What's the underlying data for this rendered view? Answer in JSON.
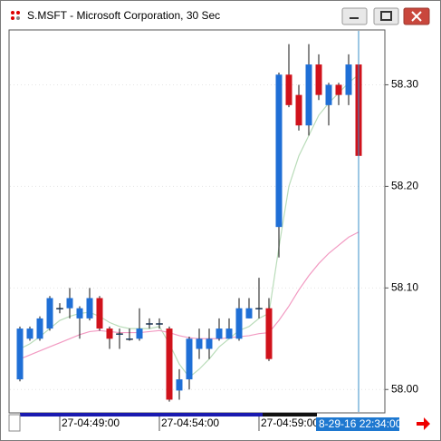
{
  "window": {
    "title": "S.MSFT - Microsoft Corporation, 30 Sec"
  },
  "chart_data": {
    "type": "candlestick",
    "categories": [
      null,
      null,
      null,
      null,
      "27-04:49:00",
      null,
      null,
      null,
      null,
      null,
      null,
      null,
      null,
      null,
      "27-04:54:00",
      null,
      null,
      null,
      null,
      null,
      null,
      null,
      null,
      null,
      "27-04:59:00",
      null,
      null,
      null,
      null,
      null,
      null,
      null,
      null,
      null,
      null
    ],
    "open": [
      58.01,
      58.05,
      58.05,
      58.06,
      58.08,
      58.08,
      58.07,
      58.07,
      58.09,
      58.06,
      58.055,
      58.05,
      58.05,
      58.065,
      58.065,
      58.06,
      57.999,
      58.01,
      58.04,
      58.04,
      58.05,
      58.05,
      58.05,
      58.07,
      58.08,
      58.08,
      58.16,
      58.31,
      58.29,
      58.26,
      58.32,
      58.28,
      58.3,
      58.29,
      58.32
    ],
    "high": [
      58.062,
      58.062,
      58.072,
      58.092,
      58.085,
      58.1,
      58.082,
      58.1,
      58.092,
      58.062,
      58.06,
      58.06,
      58.08,
      58.07,
      58.07,
      58.062,
      58.02,
      58.052,
      58.06,
      58.06,
      58.07,
      58.07,
      58.09,
      58.09,
      58.11,
      58.09,
      58.312,
      58.34,
      58.3,
      58.34,
      58.33,
      58.302,
      58.302,
      58.33,
      58.33
    ],
    "low": [
      58.008,
      58.048,
      58.048,
      58.058,
      58.075,
      58.07,
      58.05,
      58.068,
      58.058,
      58.04,
      58.04,
      58.048,
      58.048,
      58.06,
      58.06,
      57.988,
      57.99,
      58.0,
      58.03,
      58.03,
      58.048,
      58.05,
      58.048,
      58.07,
      58.07,
      58.028,
      58.13,
      58.278,
      58.255,
      58.25,
      58.285,
      58.26,
      58.28,
      58.28,
      58.228
    ],
    "close": [
      58.06,
      58.06,
      58.07,
      58.09,
      58.08,
      58.09,
      58.08,
      58.09,
      58.06,
      58.05,
      58.055,
      58.05,
      58.06,
      58.065,
      58.065,
      57.99,
      58.01,
      58.05,
      58.05,
      58.05,
      58.06,
      58.06,
      58.08,
      58.08,
      58.08,
      58.03,
      58.31,
      58.28,
      58.26,
      58.32,
      58.29,
      58.3,
      58.29,
      58.32,
      58.23
    ],
    "up_color": "#1f6fd6",
    "down_color": "#d0121b",
    "overlays": [
      {
        "color": "#b9dcb9",
        "values": [
          58.04,
          58.045,
          58.052,
          58.06,
          58.068,
          58.072,
          58.075,
          58.076,
          58.072,
          58.066,
          58.062,
          58.06,
          58.06,
          58.06,
          58.062,
          58.045,
          58.025,
          58.012,
          58.02,
          58.03,
          58.042,
          58.05,
          58.058,
          58.062,
          58.07,
          58.075,
          58.14,
          58.2,
          58.23,
          58.25,
          58.27,
          58.282,
          58.292,
          58.302,
          58.31
        ]
      },
      {
        "color": "#f29ac2",
        "values": [
          58.03,
          58.034,
          58.038,
          58.042,
          58.046,
          58.05,
          58.054,
          58.057,
          58.058,
          58.057,
          58.056,
          58.056,
          58.056,
          58.057,
          58.058,
          58.056,
          58.053,
          58.051,
          58.05,
          58.05,
          58.05,
          58.051,
          58.052,
          58.053,
          58.055,
          58.056,
          58.068,
          58.082,
          58.098,
          58.112,
          58.124,
          58.134,
          58.142,
          58.15,
          58.155
        ]
      }
    ],
    "ylim": [
      57.977,
      58.354
    ],
    "yticks": [
      {
        "value": 58.0,
        "label": "58.00"
      },
      {
        "value": 58.1,
        "label": "58.10"
      },
      {
        "value": 58.2,
        "label": "58.20"
      },
      {
        "value": 58.3,
        "label": "58.30"
      }
    ],
    "grid": true,
    "cursor_label": "8-29-16 22:34:00"
  }
}
